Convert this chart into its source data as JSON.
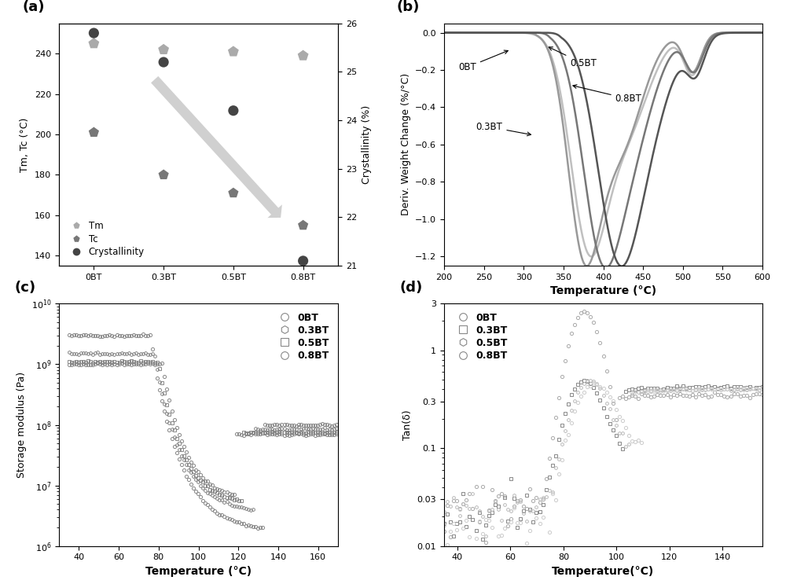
{
  "panel_a": {
    "categories": [
      "0BT",
      "0.3BT",
      "0.5BT",
      "0.8BT"
    ],
    "Tm": [
      245,
      242,
      241,
      239
    ],
    "Tc": [
      201,
      180,
      171,
      155
    ],
    "Crystallinity": [
      25.8,
      25.2,
      24.2,
      21.1
    ],
    "ylabel_left": "Tm, Tc (°C)",
    "ylabel_right": "Crystallinity (%)",
    "ylim_left": [
      135,
      255
    ],
    "ylim_right": [
      21,
      26
    ],
    "yticks_left": [
      140,
      160,
      180,
      200,
      220,
      240
    ],
    "yticks_right": [
      21,
      22,
      23,
      24,
      25,
      26
    ],
    "tm_color": "#aaaaaa",
    "tc_color": "#777777",
    "cryst_color": "#444444"
  },
  "panel_b": {
    "xlabel": "Temperature (°C)",
    "ylabel": "Deriv. Weight Change (%/°C)",
    "xlim": [
      200,
      600
    ],
    "ylim": [
      -1.25,
      0.05
    ],
    "yticks": [
      -1.2,
      -1.0,
      -0.8,
      -0.6,
      -0.4,
      -0.2,
      0.0
    ],
    "colors_0bt": "#c0c0c0",
    "colors_03bt": "#999999",
    "colors_05bt": "#777777",
    "colors_08bt": "#555555"
  },
  "panel_c": {
    "xlabel": "Temperature (°C)",
    "ylabel": "Storage modulus (Pa)",
    "xlim": [
      30,
      170
    ],
    "labels": [
      "0BT",
      "0.3BT",
      "0.5BT",
      "0.8BT"
    ],
    "markers": [
      "o",
      "h",
      "s",
      "o"
    ],
    "gray": "#888888"
  },
  "panel_d": {
    "xlabel": "Temperature(°C)",
    "ylabel": "Tan(δ)",
    "xlim": [
      35,
      155
    ],
    "ylim": [
      0.01,
      3.0
    ],
    "labels": [
      "0BT",
      "0.3BT",
      "0.5BT",
      "0.8BT"
    ],
    "markers": [
      "o",
      "s",
      "h",
      "o"
    ],
    "colors": [
      "#aaaaaa",
      "#888888",
      "#bbbbbb",
      "#cccccc"
    ]
  },
  "bg_color": "#ffffff"
}
